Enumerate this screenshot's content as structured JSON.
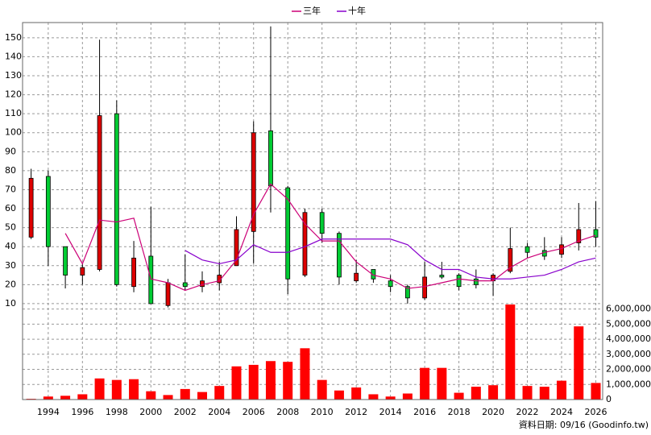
{
  "chart_data": {
    "type": "candlestick",
    "x": [
      1993,
      1994,
      1995,
      1996,
      1997,
      1998,
      1999,
      2000,
      2001,
      2002,
      2003,
      2004,
      2005,
      2006,
      2007,
      2008,
      2009,
      2010,
      2011,
      2012,
      2013,
      2014,
      2015,
      2016,
      2017,
      2018,
      2019,
      2020,
      2021,
      2022,
      2023,
      2024,
      2025,
      2026
    ],
    "open": [
      45,
      77,
      40,
      25,
      28,
      110,
      19,
      35,
      9,
      21,
      19,
      21,
      30,
      48,
      101,
      71,
      25,
      58,
      47,
      22,
      28,
      22,
      19,
      13,
      25,
      25,
      23,
      22,
      27,
      40,
      38,
      36,
      42,
      49
    ],
    "high": [
      81,
      80,
      40,
      31,
      149,
      117,
      43,
      61,
      23,
      36,
      27,
      32,
      56,
      106,
      156,
      72,
      60,
      60,
      48,
      33,
      28,
      25,
      20,
      32,
      32,
      26,
      28,
      26,
      50,
      42,
      45,
      45,
      63,
      64
    ],
    "low": [
      44,
      30,
      18,
      20,
      27,
      19,
      16,
      10,
      8,
      17,
      16,
      17,
      30,
      31,
      58,
      15,
      24,
      42,
      20,
      21,
      21,
      16,
      10,
      12,
      23,
      17,
      18,
      14,
      26,
      34,
      33,
      34,
      38,
      40
    ],
    "close": [
      76,
      40,
      25,
      29,
      109,
      20,
      34,
      10,
      21,
      19,
      22,
      25,
      49,
      100,
      72,
      23,
      58,
      47,
      24,
      26,
      23,
      19,
      13,
      24,
      24,
      19,
      20,
      25,
      39,
      37,
      35,
      41,
      49,
      45
    ],
    "up_color": "#dd0000",
    "down_color": "#00cc33",
    "series": [
      {
        "name": "三年",
        "color": "#cc0077",
        "values": [
          null,
          null,
          47,
          31,
          54,
          53,
          55,
          23,
          21,
          17,
          20,
          22,
          33,
          57,
          73,
          65,
          52,
          43,
          43,
          32,
          25,
          23,
          18,
          19,
          21,
          23,
          22,
          22,
          29,
          34,
          37,
          39,
          43,
          46
        ]
      },
      {
        "name": "十年",
        "color": "#8800cc",
        "values": [
          null,
          null,
          null,
          null,
          null,
          null,
          null,
          null,
          null,
          38,
          33,
          31,
          33,
          41,
          37,
          37,
          40,
          44,
          44,
          44,
          44,
          44,
          41,
          33,
          28,
          28,
          24,
          23,
          23,
          24,
          25,
          28,
          32,
          34
        ]
      }
    ],
    "volume": {
      "axis": "y2",
      "color": "#ff0000",
      "values": [
        50000,
        200000,
        250000,
        350000,
        1400000,
        1300000,
        1350000,
        550000,
        300000,
        700000,
        500000,
        900000,
        2200000,
        2300000,
        2550000,
        2500000,
        3400000,
        1300000,
        600000,
        800000,
        350000,
        200000,
        400000,
        2100000,
        2100000,
        450000,
        850000,
        950000,
        6300000,
        900000,
        850000,
        1250000,
        4850000,
        1100000
      ]
    },
    "xlim": [
      1992.5,
      2026.4
    ],
    "xticks": [
      1994,
      1996,
      1998,
      2000,
      2002,
      2004,
      2006,
      2008,
      2010,
      2012,
      2014,
      2016,
      2018,
      2020,
      2022,
      2024,
      2026
    ],
    "ylim": [
      7,
      158
    ],
    "yticks": [
      10,
      20,
      30,
      40,
      50,
      60,
      70,
      80,
      90,
      100,
      110,
      120,
      130,
      140,
      150
    ],
    "y2lim": [
      0,
      6300000
    ],
    "y2ticks": [
      0,
      {
        "value": 1000000,
        "label": "1,000,000"
      },
      {
        "value": 2000000,
        "label": "2,000,000"
      },
      {
        "value": 3000000,
        "label": "3,000,000"
      },
      {
        "value": 4000000,
        "label": "4,000,000"
      },
      {
        "value": 5000000,
        "label": "5,000,000"
      },
      {
        "value": 6000000,
        "label": "6,000,000"
      }
    ],
    "grid": true,
    "legend": "top",
    "footnote": "資料日期: 09/16 (Goodinfo.tw)"
  }
}
